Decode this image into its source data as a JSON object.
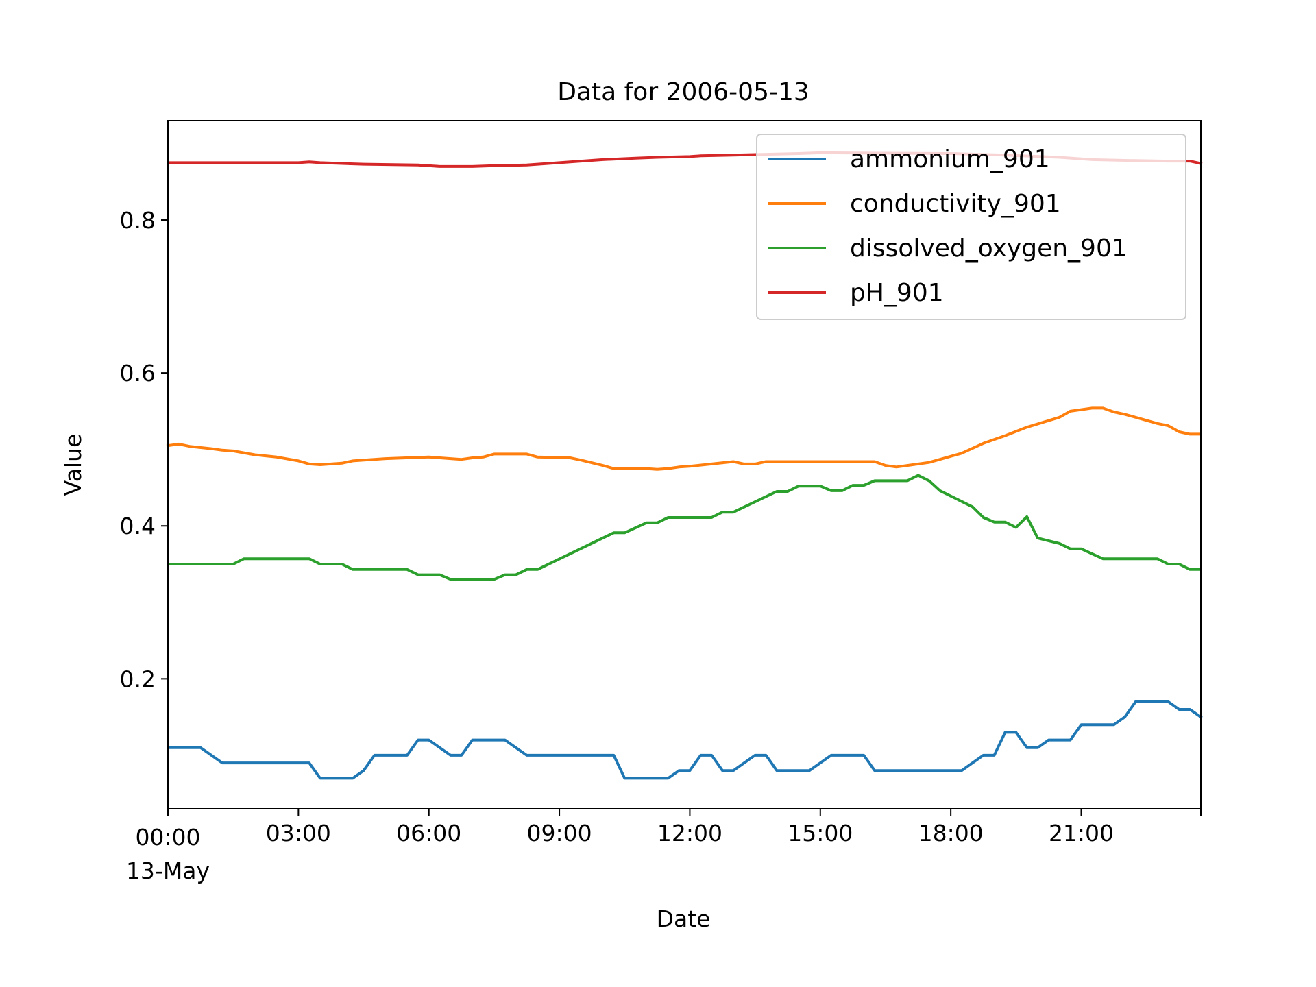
{
  "chart_data": {
    "type": "line",
    "title": "Data for 2006-05-13",
    "xlabel": "Date",
    "ylabel": "Value",
    "xlim": [
      "2006-05-13T00:00",
      "2006-05-13T23:45"
    ],
    "ylim": [
      0.03,
      0.93
    ],
    "x_ticks": [
      {
        "x": "2006-05-13T00:00",
        "label": "00:00",
        "sublabel": "13-May"
      },
      {
        "x": "2006-05-13T03:00",
        "label": "03:00"
      },
      {
        "x": "2006-05-13T06:00",
        "label": "06:00"
      },
      {
        "x": "2006-05-13T09:00",
        "label": "09:00"
      },
      {
        "x": "2006-05-13T12:00",
        "label": "12:00"
      },
      {
        "x": "2006-05-13T15:00",
        "label": "15:00"
      },
      {
        "x": "2006-05-13T18:00",
        "label": "18:00"
      },
      {
        "x": "2006-05-13T21:00",
        "label": "21:00"
      }
    ],
    "y_ticks": [
      {
        "y": 0.2,
        "label": "0.2"
      },
      {
        "y": 0.4,
        "label": "0.4"
      },
      {
        "y": 0.6,
        "label": "0.6"
      },
      {
        "y": 0.8,
        "label": "0.8"
      }
    ],
    "grid": false,
    "legend_position": "top-right",
    "series": [
      {
        "name": "ammonium_901",
        "color": "#1f77b4",
        "points": [
          [
            "2006-05-13T00:00",
            0.11
          ],
          [
            "2006-05-13T00:45",
            0.11
          ],
          [
            "2006-05-13T01:15",
            0.09
          ],
          [
            "2006-05-13T03:15",
            0.09
          ],
          [
            "2006-05-13T03:30",
            0.07
          ],
          [
            "2006-05-13T04:15",
            0.07
          ],
          [
            "2006-05-13T04:30",
            0.08
          ],
          [
            "2006-05-13T04:45",
            0.1
          ],
          [
            "2006-05-13T05:30",
            0.1
          ],
          [
            "2006-05-13T05:45",
            0.12
          ],
          [
            "2006-05-13T06:00",
            0.12
          ],
          [
            "2006-05-13T06:30",
            0.1
          ],
          [
            "2006-05-13T06:45",
            0.1
          ],
          [
            "2006-05-13T07:00",
            0.12
          ],
          [
            "2006-05-13T07:45",
            0.12
          ],
          [
            "2006-05-13T08:15",
            0.1
          ],
          [
            "2006-05-13T10:15",
            0.1
          ],
          [
            "2006-05-13T10:30",
            0.07
          ],
          [
            "2006-05-13T11:30",
            0.07
          ],
          [
            "2006-05-13T11:45",
            0.08
          ],
          [
            "2006-05-13T12:00",
            0.08
          ],
          [
            "2006-05-13T12:15",
            0.1
          ],
          [
            "2006-05-13T12:30",
            0.1
          ],
          [
            "2006-05-13T12:45",
            0.08
          ],
          [
            "2006-05-13T13:00",
            0.08
          ],
          [
            "2006-05-13T13:30",
            0.1
          ],
          [
            "2006-05-13T13:45",
            0.1
          ],
          [
            "2006-05-13T14:00",
            0.08
          ],
          [
            "2006-05-13T14:45",
            0.08
          ],
          [
            "2006-05-13T15:15",
            0.1
          ],
          [
            "2006-05-13T16:00",
            0.1
          ],
          [
            "2006-05-13T16:15",
            0.08
          ],
          [
            "2006-05-13T18:15",
            0.08
          ],
          [
            "2006-05-13T18:45",
            0.1
          ],
          [
            "2006-05-13T19:00",
            0.1
          ],
          [
            "2006-05-13T19:15",
            0.13
          ],
          [
            "2006-05-13T19:30",
            0.13
          ],
          [
            "2006-05-13T19:45",
            0.11
          ],
          [
            "2006-05-13T20:00",
            0.11
          ],
          [
            "2006-05-13T20:15",
            0.12
          ],
          [
            "2006-05-13T20:45",
            0.12
          ],
          [
            "2006-05-13T21:00",
            0.14
          ],
          [
            "2006-05-13T21:45",
            0.14
          ],
          [
            "2006-05-13T22:00",
            0.15
          ],
          [
            "2006-05-13T22:15",
            0.17
          ],
          [
            "2006-05-13T23:00",
            0.17
          ],
          [
            "2006-05-13T23:15",
            0.16
          ],
          [
            "2006-05-13T23:30",
            0.16
          ],
          [
            "2006-05-13T23:45",
            0.15
          ]
        ]
      },
      {
        "name": "conductivity_901",
        "color": "#ff7f0e",
        "points": [
          [
            "2006-05-13T00:00",
            0.505
          ],
          [
            "2006-05-13T00:15",
            0.507
          ],
          [
            "2006-05-13T00:30",
            0.504
          ],
          [
            "2006-05-13T01:00",
            0.501
          ],
          [
            "2006-05-13T01:15",
            0.499
          ],
          [
            "2006-05-13T01:30",
            0.498
          ],
          [
            "2006-05-13T02:00",
            0.493
          ],
          [
            "2006-05-13T02:30",
            0.49
          ],
          [
            "2006-05-13T03:00",
            0.485
          ],
          [
            "2006-05-13T03:15",
            0.481
          ],
          [
            "2006-05-13T03:30",
            0.48
          ],
          [
            "2006-05-13T04:00",
            0.482
          ],
          [
            "2006-05-13T04:15",
            0.485
          ],
          [
            "2006-05-13T05:00",
            0.488
          ],
          [
            "2006-05-13T06:00",
            0.49
          ],
          [
            "2006-05-13T06:30",
            0.488
          ],
          [
            "2006-05-13T06:45",
            0.487
          ],
          [
            "2006-05-13T07:00",
            0.489
          ],
          [
            "2006-05-13T07:15",
            0.49
          ],
          [
            "2006-05-13T07:30",
            0.494
          ],
          [
            "2006-05-13T08:15",
            0.494
          ],
          [
            "2006-05-13T08:30",
            0.49
          ],
          [
            "2006-05-13T09:15",
            0.489
          ],
          [
            "2006-05-13T09:30",
            0.486
          ],
          [
            "2006-05-13T10:00",
            0.479
          ],
          [
            "2006-05-13T10:15",
            0.475
          ],
          [
            "2006-05-13T11:00",
            0.475
          ],
          [
            "2006-05-13T11:15",
            0.474
          ],
          [
            "2006-05-13T11:30",
            0.475
          ],
          [
            "2006-05-13T11:45",
            0.477
          ],
          [
            "2006-05-13T12:00",
            0.478
          ],
          [
            "2006-05-13T12:30",
            0.481
          ],
          [
            "2006-05-13T13:00",
            0.484
          ],
          [
            "2006-05-13T13:15",
            0.481
          ],
          [
            "2006-05-13T13:30",
            0.481
          ],
          [
            "2006-05-13T13:45",
            0.484
          ],
          [
            "2006-05-13T16:15",
            0.484
          ],
          [
            "2006-05-13T16:30",
            0.479
          ],
          [
            "2006-05-13T16:45",
            0.477
          ],
          [
            "2006-05-13T17:00",
            0.479
          ],
          [
            "2006-05-13T17:30",
            0.483
          ],
          [
            "2006-05-13T18:15",
            0.495
          ],
          [
            "2006-05-13T18:45",
            0.508
          ],
          [
            "2006-05-13T19:15",
            0.518
          ],
          [
            "2006-05-13T19:45",
            0.529
          ],
          [
            "2006-05-13T20:30",
            0.542
          ],
          [
            "2006-05-13T20:45",
            0.55
          ],
          [
            "2006-05-13T21:15",
            0.554
          ],
          [
            "2006-05-13T21:30",
            0.554
          ],
          [
            "2006-05-13T21:45",
            0.549
          ],
          [
            "2006-05-13T22:00",
            0.546
          ],
          [
            "2006-05-13T22:45",
            0.534
          ],
          [
            "2006-05-13T23:00",
            0.531
          ],
          [
            "2006-05-13T23:15",
            0.523
          ],
          [
            "2006-05-13T23:30",
            0.52
          ],
          [
            "2006-05-13T23:45",
            0.52
          ]
        ]
      },
      {
        "name": "dissolved_oxygen_901",
        "color": "#2ca02c",
        "points": [
          [
            "2006-05-13T00:00",
            0.35
          ],
          [
            "2006-05-13T01:30",
            0.35
          ],
          [
            "2006-05-13T01:45",
            0.357
          ],
          [
            "2006-05-13T03:15",
            0.357
          ],
          [
            "2006-05-13T03:30",
            0.35
          ],
          [
            "2006-05-13T04:00",
            0.35
          ],
          [
            "2006-05-13T04:15",
            0.343
          ],
          [
            "2006-05-13T05:30",
            0.343
          ],
          [
            "2006-05-13T05:45",
            0.336
          ],
          [
            "2006-05-13T06:15",
            0.336
          ],
          [
            "2006-05-13T06:30",
            0.33
          ],
          [
            "2006-05-13T07:30",
            0.33
          ],
          [
            "2006-05-13T07:45",
            0.336
          ],
          [
            "2006-05-13T08:00",
            0.336
          ],
          [
            "2006-05-13T08:15",
            0.343
          ],
          [
            "2006-05-13T08:30",
            0.343
          ],
          [
            "2006-05-13T10:15",
            0.391
          ],
          [
            "2006-05-13T10:30",
            0.391
          ],
          [
            "2006-05-13T11:00",
            0.404
          ],
          [
            "2006-05-13T11:15",
            0.404
          ],
          [
            "2006-05-13T11:30",
            0.411
          ],
          [
            "2006-05-13T12:30",
            0.411
          ],
          [
            "2006-05-13T12:45",
            0.418
          ],
          [
            "2006-05-13T13:00",
            0.418
          ],
          [
            "2006-05-13T14:00",
            0.445
          ],
          [
            "2006-05-13T14:15",
            0.445
          ],
          [
            "2006-05-13T14:30",
            0.452
          ],
          [
            "2006-05-13T15:00",
            0.452
          ],
          [
            "2006-05-13T15:15",
            0.446
          ],
          [
            "2006-05-13T15:30",
            0.446
          ],
          [
            "2006-05-13T15:45",
            0.453
          ],
          [
            "2006-05-13T16:00",
            0.453
          ],
          [
            "2006-05-13T16:15",
            0.459
          ],
          [
            "2006-05-13T17:00",
            0.459
          ],
          [
            "2006-05-13T17:15",
            0.466
          ],
          [
            "2006-05-13T17:30",
            0.459
          ],
          [
            "2006-05-13T17:45",
            0.446
          ],
          [
            "2006-05-13T18:30",
            0.425
          ],
          [
            "2006-05-13T18:45",
            0.411
          ],
          [
            "2006-05-13T19:00",
            0.405
          ],
          [
            "2006-05-13T19:15",
            0.405
          ],
          [
            "2006-05-13T19:30",
            0.398
          ],
          [
            "2006-05-13T19:45",
            0.412
          ],
          [
            "2006-05-13T20:00",
            0.384
          ],
          [
            "2006-05-13T20:30",
            0.377
          ],
          [
            "2006-05-13T20:45",
            0.37
          ],
          [
            "2006-05-13T21:00",
            0.37
          ],
          [
            "2006-05-13T21:30",
            0.357
          ],
          [
            "2006-05-13T22:45",
            0.357
          ],
          [
            "2006-05-13T23:00",
            0.35
          ],
          [
            "2006-05-13T23:15",
            0.35
          ],
          [
            "2006-05-13T23:30",
            0.343
          ],
          [
            "2006-05-13T23:45",
            0.343
          ]
        ]
      },
      {
        "name": "pH_901",
        "color": "#d62728",
        "points": [
          [
            "2006-05-13T00:00",
            0.875
          ],
          [
            "2006-05-13T03:00",
            0.875
          ],
          [
            "2006-05-13T03:15",
            0.876
          ],
          [
            "2006-05-13T03:30",
            0.875
          ],
          [
            "2006-05-13T04:00",
            0.874
          ],
          [
            "2006-05-13T04:30",
            0.873
          ],
          [
            "2006-05-13T05:45",
            0.872
          ],
          [
            "2006-05-13T06:15",
            0.87
          ],
          [
            "2006-05-13T07:00",
            0.87
          ],
          [
            "2006-05-13T07:30",
            0.871
          ],
          [
            "2006-05-13T08:15",
            0.872
          ],
          [
            "2006-05-13T09:00",
            0.875
          ],
          [
            "2006-05-13T10:00",
            0.879
          ],
          [
            "2006-05-13T10:45",
            0.881
          ],
          [
            "2006-05-13T11:15",
            0.882
          ],
          [
            "2006-05-13T12:00",
            0.883
          ],
          [
            "2006-05-13T12:15",
            0.884
          ],
          [
            "2006-05-13T13:00",
            0.885
          ],
          [
            "2006-05-13T14:30",
            0.887
          ],
          [
            "2006-05-13T15:00",
            0.888
          ],
          [
            "2006-05-13T18:00",
            0.887
          ],
          [
            "2006-05-13T19:15",
            0.885
          ],
          [
            "2006-05-13T20:30",
            0.882
          ],
          [
            "2006-05-13T21:15",
            0.879
          ],
          [
            "2006-05-13T22:00",
            0.878
          ],
          [
            "2006-05-13T23:00",
            0.877
          ],
          [
            "2006-05-13T23:30",
            0.877
          ],
          [
            "2006-05-13T23:45",
            0.874
          ]
        ]
      }
    ]
  }
}
